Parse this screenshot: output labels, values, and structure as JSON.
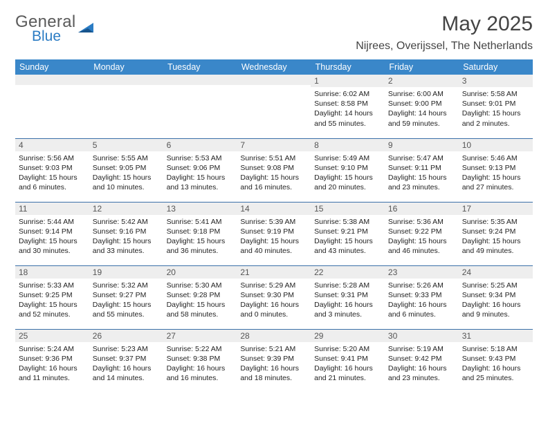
{
  "brand": {
    "general": "General",
    "blue": "Blue"
  },
  "title": "May 2025",
  "subtitle": "Nijrees, Overijssel, The Netherlands",
  "colors": {
    "header_bg": "#3a87c9",
    "header_text": "#ffffff",
    "divider": "#3a6fa8",
    "daynum_bg": "#eeeeee",
    "brand_gray": "#5a5a5a",
    "brand_blue": "#2b7cc4"
  },
  "weekdays": [
    "Sunday",
    "Monday",
    "Tuesday",
    "Wednesday",
    "Thursday",
    "Friday",
    "Saturday"
  ],
  "weeks": [
    [
      {
        "n": "",
        "t": ""
      },
      {
        "n": "",
        "t": ""
      },
      {
        "n": "",
        "t": ""
      },
      {
        "n": "",
        "t": ""
      },
      {
        "n": "1",
        "t": "Sunrise: 6:02 AM\nSunset: 8:58 PM\nDaylight: 14 hours and 55 minutes."
      },
      {
        "n": "2",
        "t": "Sunrise: 6:00 AM\nSunset: 9:00 PM\nDaylight: 14 hours and 59 minutes."
      },
      {
        "n": "3",
        "t": "Sunrise: 5:58 AM\nSunset: 9:01 PM\nDaylight: 15 hours and 2 minutes."
      }
    ],
    [
      {
        "n": "4",
        "t": "Sunrise: 5:56 AM\nSunset: 9:03 PM\nDaylight: 15 hours and 6 minutes."
      },
      {
        "n": "5",
        "t": "Sunrise: 5:55 AM\nSunset: 9:05 PM\nDaylight: 15 hours and 10 minutes."
      },
      {
        "n": "6",
        "t": "Sunrise: 5:53 AM\nSunset: 9:06 PM\nDaylight: 15 hours and 13 minutes."
      },
      {
        "n": "7",
        "t": "Sunrise: 5:51 AM\nSunset: 9:08 PM\nDaylight: 15 hours and 16 minutes."
      },
      {
        "n": "8",
        "t": "Sunrise: 5:49 AM\nSunset: 9:10 PM\nDaylight: 15 hours and 20 minutes."
      },
      {
        "n": "9",
        "t": "Sunrise: 5:47 AM\nSunset: 9:11 PM\nDaylight: 15 hours and 23 minutes."
      },
      {
        "n": "10",
        "t": "Sunrise: 5:46 AM\nSunset: 9:13 PM\nDaylight: 15 hours and 27 minutes."
      }
    ],
    [
      {
        "n": "11",
        "t": "Sunrise: 5:44 AM\nSunset: 9:14 PM\nDaylight: 15 hours and 30 minutes."
      },
      {
        "n": "12",
        "t": "Sunrise: 5:42 AM\nSunset: 9:16 PM\nDaylight: 15 hours and 33 minutes."
      },
      {
        "n": "13",
        "t": "Sunrise: 5:41 AM\nSunset: 9:18 PM\nDaylight: 15 hours and 36 minutes."
      },
      {
        "n": "14",
        "t": "Sunrise: 5:39 AM\nSunset: 9:19 PM\nDaylight: 15 hours and 40 minutes."
      },
      {
        "n": "15",
        "t": "Sunrise: 5:38 AM\nSunset: 9:21 PM\nDaylight: 15 hours and 43 minutes."
      },
      {
        "n": "16",
        "t": "Sunrise: 5:36 AM\nSunset: 9:22 PM\nDaylight: 15 hours and 46 minutes."
      },
      {
        "n": "17",
        "t": "Sunrise: 5:35 AM\nSunset: 9:24 PM\nDaylight: 15 hours and 49 minutes."
      }
    ],
    [
      {
        "n": "18",
        "t": "Sunrise: 5:33 AM\nSunset: 9:25 PM\nDaylight: 15 hours and 52 minutes."
      },
      {
        "n": "19",
        "t": "Sunrise: 5:32 AM\nSunset: 9:27 PM\nDaylight: 15 hours and 55 minutes."
      },
      {
        "n": "20",
        "t": "Sunrise: 5:30 AM\nSunset: 9:28 PM\nDaylight: 15 hours and 58 minutes."
      },
      {
        "n": "21",
        "t": "Sunrise: 5:29 AM\nSunset: 9:30 PM\nDaylight: 16 hours and 0 minutes."
      },
      {
        "n": "22",
        "t": "Sunrise: 5:28 AM\nSunset: 9:31 PM\nDaylight: 16 hours and 3 minutes."
      },
      {
        "n": "23",
        "t": "Sunrise: 5:26 AM\nSunset: 9:33 PM\nDaylight: 16 hours and 6 minutes."
      },
      {
        "n": "24",
        "t": "Sunrise: 5:25 AM\nSunset: 9:34 PM\nDaylight: 16 hours and 9 minutes."
      }
    ],
    [
      {
        "n": "25",
        "t": "Sunrise: 5:24 AM\nSunset: 9:36 PM\nDaylight: 16 hours and 11 minutes."
      },
      {
        "n": "26",
        "t": "Sunrise: 5:23 AM\nSunset: 9:37 PM\nDaylight: 16 hours and 14 minutes."
      },
      {
        "n": "27",
        "t": "Sunrise: 5:22 AM\nSunset: 9:38 PM\nDaylight: 16 hours and 16 minutes."
      },
      {
        "n": "28",
        "t": "Sunrise: 5:21 AM\nSunset: 9:39 PM\nDaylight: 16 hours and 18 minutes."
      },
      {
        "n": "29",
        "t": "Sunrise: 5:20 AM\nSunset: 9:41 PM\nDaylight: 16 hours and 21 minutes."
      },
      {
        "n": "30",
        "t": "Sunrise: 5:19 AM\nSunset: 9:42 PM\nDaylight: 16 hours and 23 minutes."
      },
      {
        "n": "31",
        "t": "Sunrise: 5:18 AM\nSunset: 9:43 PM\nDaylight: 16 hours and 25 minutes."
      }
    ]
  ]
}
